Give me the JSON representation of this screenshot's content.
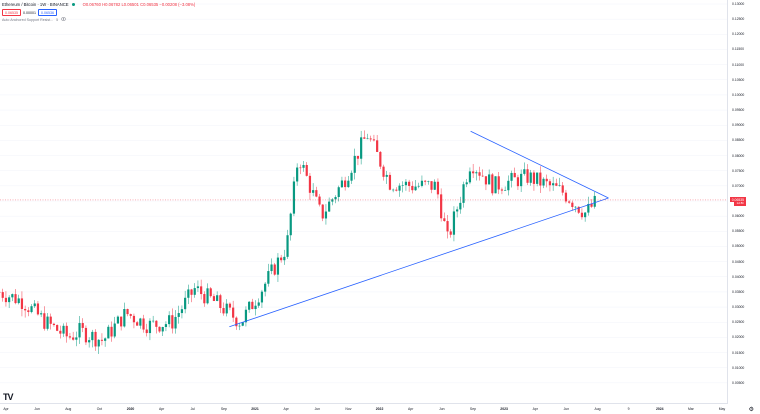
{
  "legend": {
    "symbol": "Ethereum / Bitcoin · 1W · BINANCE",
    "ohlc": "O0.06760 H0.06782 L0.06501 C0.06535 −0.00208 (−3.08%)",
    "price_boxes": [
      "0.06535",
      "0.00001",
      "0.06536"
    ],
    "indicator_name": "Auto Anchored Support Resist...",
    "indicator_value": "5",
    "eye_icon": "eye-icon",
    "settings_icon": "gear-icon"
  },
  "current_price": {
    "label": "0.06535",
    "countdown": "1d 8h"
  },
  "y_axis_labels": [
    "0.13000",
    "0.12500",
    "0.12000",
    "0.11500",
    "0.11000",
    "0.10500",
    "0.10000",
    "0.09500",
    "0.09000",
    "0.08500",
    "0.08000",
    "0.07500",
    "0.07000",
    "0.06500",
    "0.06000",
    "0.05500",
    "0.05000",
    "0.04500",
    "0.04000",
    "0.03500",
    "0.03000",
    "0.02500",
    "0.02000",
    "0.01500",
    "0.01000",
    "0.00500"
  ],
  "x_axis_labels": [
    {
      "text": "Apr",
      "bold": false
    },
    {
      "text": "Jun",
      "bold": false
    },
    {
      "text": "Aug",
      "bold": false
    },
    {
      "text": "Oct",
      "bold": false
    },
    {
      "text": "2020",
      "bold": true
    },
    {
      "text": "Apr",
      "bold": false
    },
    {
      "text": "Jul",
      "bold": false
    },
    {
      "text": "Sep",
      "bold": false
    },
    {
      "text": "2021",
      "bold": true
    },
    {
      "text": "Apr",
      "bold": false
    },
    {
      "text": "Jun",
      "bold": false
    },
    {
      "text": "Nov",
      "bold": false
    },
    {
      "text": "2022",
      "bold": true
    },
    {
      "text": "Apr",
      "bold": false
    },
    {
      "text": "Jun",
      "bold": false
    },
    {
      "text": "Sep",
      "bold": false
    },
    {
      "text": "2023",
      "bold": true
    },
    {
      "text": "Apr",
      "bold": false
    },
    {
      "text": "Jun",
      "bold": false
    },
    {
      "text": "Aug",
      "bold": false
    },
    {
      "text": "9",
      "bold": false
    },
    {
      "text": "2024",
      "bold": true
    },
    {
      "text": "Mar",
      "bold": false
    },
    {
      "text": "May",
      "bold": false
    }
  ],
  "colors": {
    "up": "#089981",
    "down": "#f23645",
    "trendline": "#2962ff",
    "grid": "#f0f3fa"
  },
  "chart_data": {
    "type": "candlestick",
    "title": "Ethereum / Bitcoin · 1W · BINANCE",
    "ylim": [
      0.0,
      0.13
    ],
    "grid": true,
    "close_path": [
      {
        "x": "2019-03",
        "y": 0.035
      },
      {
        "x": "2019-05",
        "y": 0.032
      },
      {
        "x": "2019-07",
        "y": 0.025
      },
      {
        "x": "2019-09",
        "y": 0.02
      },
      {
        "x": "2019-10",
        "y": 0.022
      },
      {
        "x": "2019-12",
        "y": 0.019
      },
      {
        "x": "2020-02",
        "y": 0.028
      },
      {
        "x": "2020-04",
        "y": 0.024
      },
      {
        "x": "2020-06",
        "y": 0.025
      },
      {
        "x": "2020-08",
        "y": 0.036
      },
      {
        "x": "2020-10",
        "y": 0.031
      },
      {
        "x": "2020-12",
        "y": 0.025
      },
      {
        "x": "2021-02",
        "y": 0.037
      },
      {
        "x": "2021-04",
        "y": 0.05
      },
      {
        "x": "2021-05",
        "y": 0.08
      },
      {
        "x": "2021-07",
        "y": 0.06
      },
      {
        "x": "2021-09",
        "y": 0.072
      },
      {
        "x": "2021-11",
        "y": 0.087
      },
      {
        "x": "2022-01",
        "y": 0.071
      },
      {
        "x": "2022-03",
        "y": 0.07
      },
      {
        "x": "2022-05",
        "y": 0.07
      },
      {
        "x": "2022-06",
        "y": 0.052
      },
      {
        "x": "2022-08",
        "y": 0.078
      },
      {
        "x": "2022-10",
        "y": 0.07
      },
      {
        "x": "2023-01",
        "y": 0.073
      },
      {
        "x": "2023-04",
        "y": 0.068
      },
      {
        "x": "2023-06",
        "y": 0.061
      },
      {
        "x": "2023-07",
        "y": 0.065
      }
    ]
  }
}
